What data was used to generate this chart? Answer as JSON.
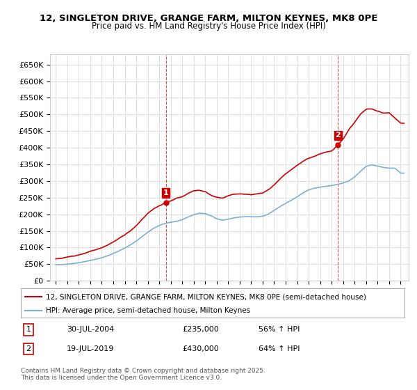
{
  "title": "12, SINGLETON DRIVE, GRANGE FARM, MILTON KEYNES, MK8 0PE",
  "subtitle": "Price paid vs. HM Land Registry's House Price Index (HPI)",
  "legend_line1": "12, SINGLETON DRIVE, GRANGE FARM, MILTON KEYNES, MK8 0PE (semi-detached house)",
  "legend_line2": "HPI: Average price, semi-detached house, Milton Keynes",
  "sale1_label": "1",
  "sale1_date": "30-JUL-2004",
  "sale1_price": "£235,000",
  "sale1_hpi": "56% ↑ HPI",
  "sale2_label": "2",
  "sale2_date": "19-JUL-2019",
  "sale2_price": "£430,000",
  "sale2_hpi": "64% ↑ HPI",
  "footnote": "Contains HM Land Registry data © Crown copyright and database right 2025.\nThis data is licensed under the Open Government Licence v3.0.",
  "red_color": "#cc0000",
  "blue_color": "#7ab0d4",
  "marker_color_1": "#cc0000",
  "marker_color_2": "#cc0000",
  "background_color": "#ffffff",
  "grid_color": "#dddddd",
  "ylim_min": 0,
  "ylim_max": 680000,
  "sale1_year": 2004.58,
  "sale1_value": 235000,
  "sale2_year": 2019.55,
  "sale2_value": 430000
}
